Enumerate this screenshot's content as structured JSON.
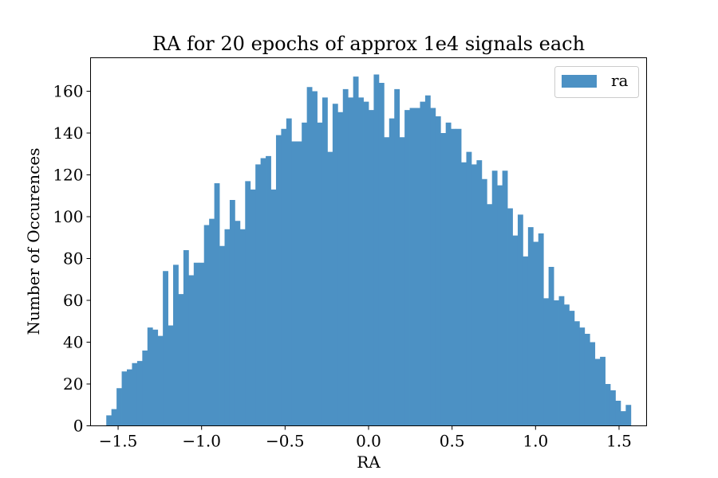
{
  "chart_data": {
    "type": "bar",
    "title": "RA for 20 epochs of approx 1e4 signals each",
    "xlabel": "RA",
    "ylabel": "Number of Occurences",
    "xlim": [
      -1.665,
      1.665
    ],
    "ylim": [
      0,
      176
    ],
    "x_ticks": [
      -1.5,
      -1.0,
      -0.5,
      0.0,
      0.5,
      1.0,
      1.5
    ],
    "x_tick_labels": [
      "−1.5",
      "−1.0",
      "−0.5",
      "0.0",
      "0.5",
      "1.0",
      "1.5"
    ],
    "y_ticks": [
      0,
      20,
      40,
      60,
      80,
      100,
      120,
      140,
      160
    ],
    "y_tick_labels": [
      "0",
      "20",
      "40",
      "60",
      "80",
      "100",
      "120",
      "140",
      "160"
    ],
    "bin_start": -1.5708,
    "bin_end": 1.5708,
    "color": "#4c91c4",
    "legend": {
      "position": "upper right",
      "entries": [
        "ra"
      ]
    },
    "series": [
      {
        "name": "ra",
        "values": [
          5,
          8,
          18,
          26,
          27,
          30,
          31,
          36,
          47,
          46,
          43,
          74,
          48,
          77,
          63,
          84,
          72,
          78,
          78,
          96,
          99,
          116,
          86,
          94,
          108,
          98,
          94,
          117,
          113,
          125,
          128,
          129,
          113,
          139,
          142,
          147,
          136,
          136,
          145,
          162,
          160,
          145,
          157,
          131,
          154,
          150,
          161,
          157,
          167,
          157,
          155,
          151,
          168,
          164,
          138,
          147,
          161,
          138,
          151,
          152,
          152,
          155,
          158,
          152,
          148,
          140,
          145,
          142,
          142,
          126,
          131,
          125,
          127,
          118,
          106,
          122,
          115,
          122,
          104,
          91,
          101,
          81,
          95,
          88,
          92,
          61,
          76,
          60,
          62,
          58,
          55,
          50,
          47,
          44,
          40,
          32,
          33,
          20,
          17,
          12,
          7,
          10
        ]
      }
    ]
  }
}
